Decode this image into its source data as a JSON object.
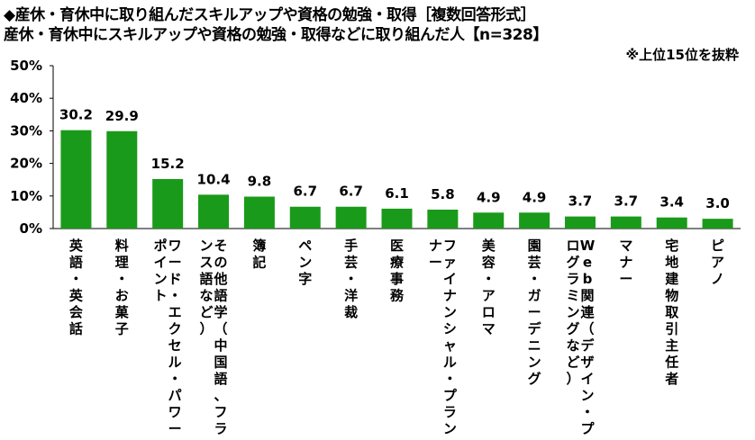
{
  "title_line1": "◆産休・育休中に取り組んだスキルアップや資格の勉強・取得［複数回答形式］",
  "title_line2": "産休・育休中にスキルアップや資格の勉強・取得などに取り組んだ人【n=328】",
  "note": "※上位15位を抜粋",
  "colors": {
    "bar": "#1a9a1a",
    "axis": "#000000"
  },
  "chart_data": {
    "type": "bar",
    "ylim": [
      0,
      50
    ],
    "yticks": [
      "0%",
      "10%",
      "20%",
      "30%",
      "40%",
      "50%"
    ],
    "grid": false,
    "categories": [
      "英語・英会話",
      "料理・お菓子",
      "ワード・エクセル・パワーポイント",
      "その他語学（中国語、フランス語など）",
      "簿記",
      "ペン字",
      "手芸・洋裁",
      "医療事務",
      "ファイナンシャル・プランナー",
      "美容・アロマ",
      "園芸・ガーデニング",
      "Web関連（デザイン・プログラミングなど）",
      "マナー",
      "宅地建物取引主任者",
      "ピアノ"
    ],
    "values": [
      30.2,
      29.9,
      15.2,
      10.4,
      9.8,
      6.7,
      6.7,
      6.1,
      5.8,
      4.9,
      4.9,
      3.7,
      3.7,
      3.4,
      3.0
    ],
    "value_labels": [
      "30.2",
      "29.9",
      "15.2",
      "10.4",
      "9.8",
      "6.7",
      "6.7",
      "6.1",
      "5.8",
      "4.9",
      "4.9",
      "3.7",
      "3.7",
      "3.4",
      "3.0"
    ]
  }
}
